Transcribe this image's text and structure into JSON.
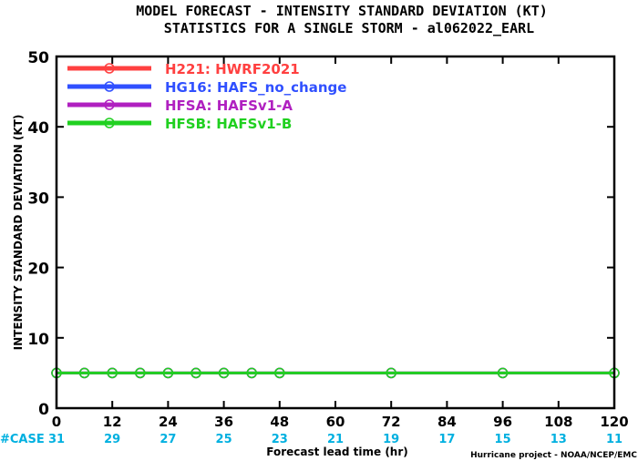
{
  "title_line1": "MODEL FORECAST - INTENSITY STANDARD DEVIATION (KT)",
  "title_line2": "STATISTICS FOR A SINGLE STORM - al062022_EARL",
  "credit": "Hurricane project - NOAA/NCEP/EMC",
  "cases_label": "#CASE",
  "colors": {
    "cases": "#00b0e0"
  },
  "chart_data": {
    "type": "line",
    "title": "MODEL FORECAST - INTENSITY STANDARD DEVIATION (KT)",
    "subtitle": "STATISTICS FOR A SINGLE STORM - al062022_EARL",
    "xlabel": "Forecast lead time (hr)",
    "ylabel": "INTENSITY STANDARD DEVIATION (KT)",
    "xlim": [
      0,
      120
    ],
    "ylim": [
      0,
      50
    ],
    "xticks": [
      0,
      12,
      24,
      36,
      48,
      60,
      72,
      84,
      96,
      108,
      120
    ],
    "yticks": [
      0,
      10,
      20,
      30,
      40,
      50
    ],
    "grid": false,
    "legend_position": "top-left",
    "x": [
      0,
      6,
      12,
      18,
      24,
      30,
      36,
      42,
      48,
      72,
      96,
      120
    ],
    "series": [
      {
        "name": "H221: HWRF2021",
        "color": "#ff4040",
        "values": [
          5,
          5,
          5,
          5,
          5,
          5,
          5,
          5,
          5,
          5,
          5,
          5
        ]
      },
      {
        "name": "HG16: HAFS_no_change",
        "color": "#3050ff",
        "values": [
          5,
          5,
          5,
          5,
          5,
          5,
          5,
          5,
          5,
          5,
          5,
          5
        ]
      },
      {
        "name": "HFSA: HAFSv1-A",
        "color": "#b020c0",
        "values": [
          5,
          5,
          5,
          5,
          5,
          5,
          5,
          5,
          5,
          5,
          5,
          5
        ]
      },
      {
        "name": "HFSB: HAFSv1-B",
        "color": "#20d020",
        "values": [
          5,
          5,
          5,
          5,
          5,
          5,
          5,
          5,
          5,
          5,
          5,
          5
        ]
      }
    ],
    "cases": [
      {
        "x": 0,
        "n": 31
      },
      {
        "x": 12,
        "n": 29
      },
      {
        "x": 24,
        "n": 27
      },
      {
        "x": 36,
        "n": 25
      },
      {
        "x": 48,
        "n": 23
      },
      {
        "x": 60,
        "n": 21
      },
      {
        "x": 72,
        "n": 19
      },
      {
        "x": 84,
        "n": 17
      },
      {
        "x": 96,
        "n": 15
      },
      {
        "x": 108,
        "n": 13
      },
      {
        "x": 120,
        "n": 11
      }
    ]
  }
}
